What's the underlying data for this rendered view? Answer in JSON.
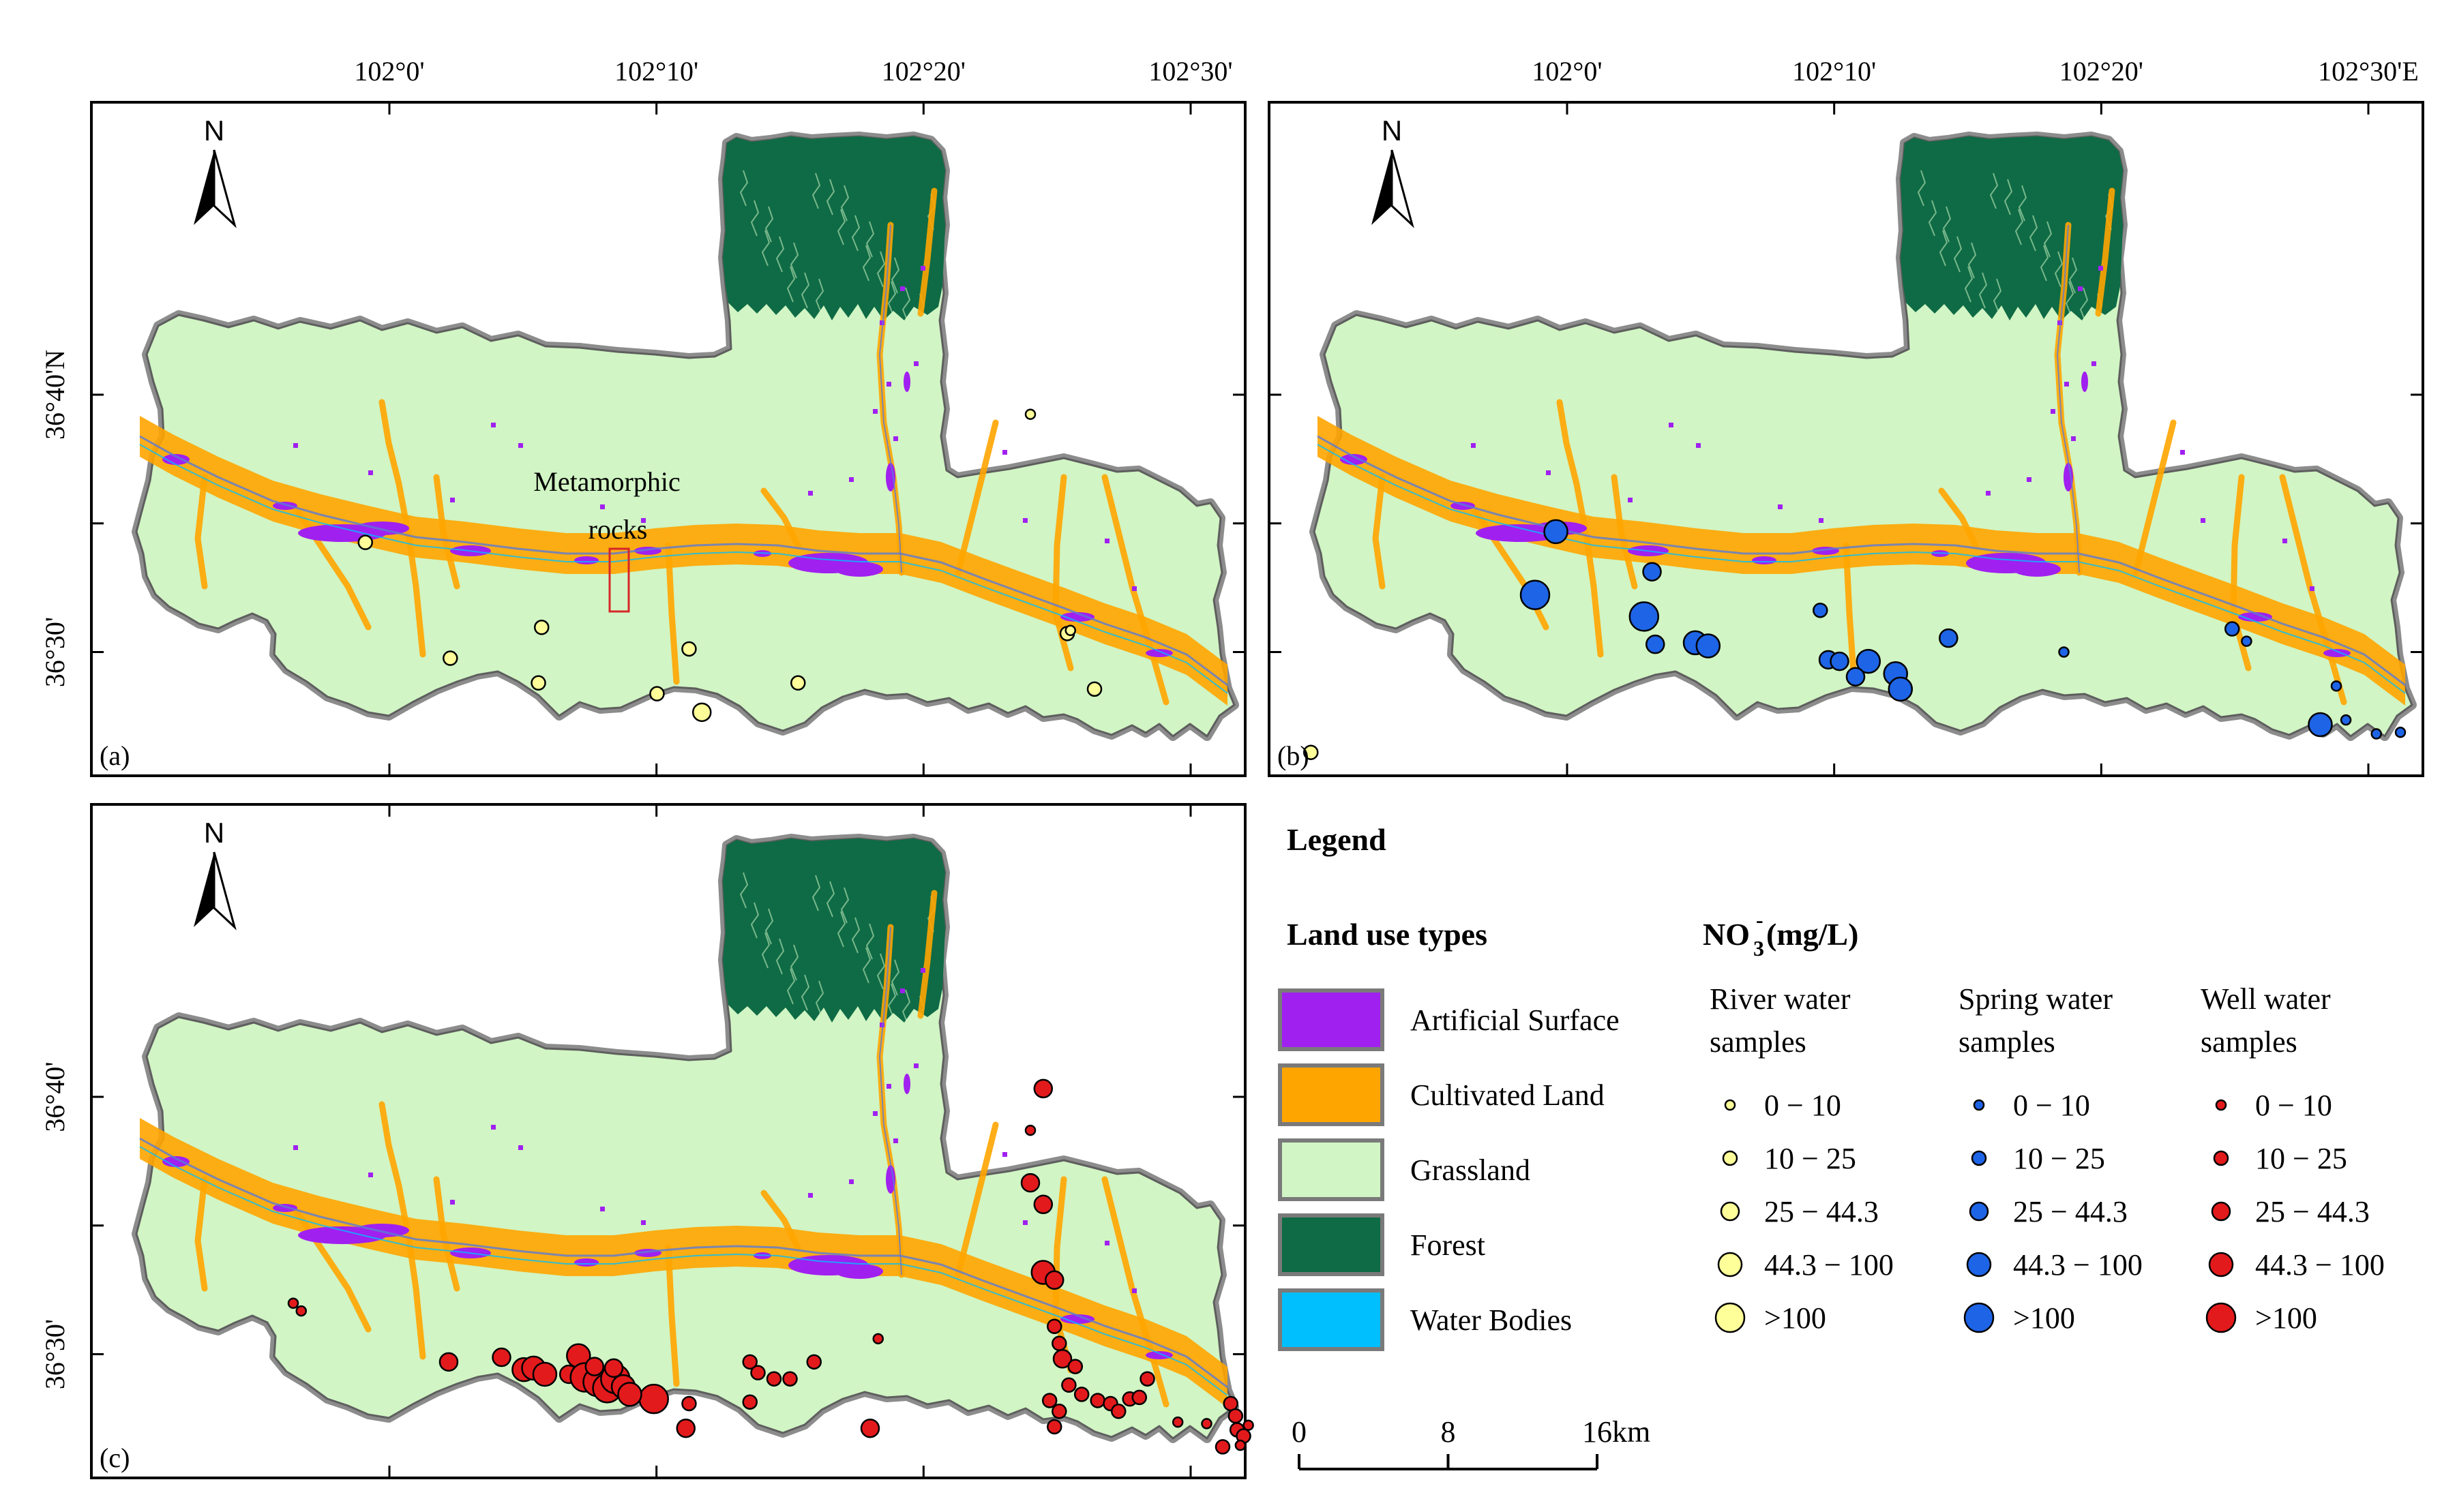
{
  "figure": {
    "panels": [
      {
        "id": "a",
        "panel_label": "(a)",
        "top_ticks": [
          "102°0'",
          "102°10'",
          "102°20'",
          "102°30'"
        ],
        "left_ticks": [
          "36°40'N",
          "36°30'"
        ],
        "annotation": "Metamorphic rocks",
        "sample_type": "river",
        "samples": [
          {
            "lon": 101.985,
            "lat": 36.571,
            "cls": 2
          },
          {
            "lon": 102.095,
            "lat": 36.516,
            "cls": 2
          },
          {
            "lon": 102.038,
            "lat": 36.496,
            "cls": 2
          },
          {
            "lon": 102.093,
            "lat": 36.48,
            "cls": 2
          },
          {
            "lon": 102.187,
            "lat": 36.502,
            "cls": 2
          },
          {
            "lon": 102.167,
            "lat": 36.473,
            "cls": 2
          },
          {
            "lon": 102.195,
            "lat": 36.461,
            "cls": 3
          },
          {
            "lon": 102.255,
            "lat": 36.48,
            "cls": 2
          },
          {
            "lon": 102.4,
            "lat": 36.654,
            "cls": 1
          },
          {
            "lon": 102.423,
            "lat": 36.512,
            "cls": 2
          },
          {
            "lon": 102.425,
            "lat": 36.514,
            "cls": 1
          },
          {
            "lon": 102.44,
            "lat": 36.476,
            "cls": 2
          },
          {
            "lon": 102.575,
            "lat": 36.435,
            "cls": 2
          }
        ]
      },
      {
        "id": "b",
        "panel_label": "(b)",
        "top_ticks": [
          "102°0'",
          "102°10'",
          "102°20'",
          "102°30'E"
        ],
        "left_ticks": [],
        "sample_type": "spring",
        "samples": [
          {
            "lon": 101.993,
            "lat": 36.578,
            "cls": 4
          },
          {
            "lon": 101.98,
            "lat": 36.537,
            "cls": 5
          },
          {
            "lon": 102.053,
            "lat": 36.552,
            "cls": 3
          },
          {
            "lon": 102.048,
            "lat": 36.523,
            "cls": 5
          },
          {
            "lon": 102.055,
            "lat": 36.505,
            "cls": 3
          },
          {
            "lon": 102.08,
            "lat": 36.506,
            "cls": 4
          },
          {
            "lon": 102.088,
            "lat": 36.504,
            "cls": 4
          },
          {
            "lon": 102.158,
            "lat": 36.527,
            "cls": 2
          },
          {
            "lon": 102.163,
            "lat": 36.495,
            "cls": 3
          },
          {
            "lon": 102.17,
            "lat": 36.494,
            "cls": 3
          },
          {
            "lon": 102.188,
            "lat": 36.494,
            "cls": 4
          },
          {
            "lon": 102.18,
            "lat": 36.484,
            "cls": 3
          },
          {
            "lon": 102.205,
            "lat": 36.486,
            "cls": 4
          },
          {
            "lon": 102.208,
            "lat": 36.476,
            "cls": 4
          },
          {
            "lon": 102.238,
            "lat": 36.509,
            "cls": 3
          },
          {
            "lon": 102.31,
            "lat": 36.5,
            "cls": 1
          },
          {
            "lon": 102.415,
            "lat": 36.515,
            "cls": 2
          },
          {
            "lon": 102.424,
            "lat": 36.507,
            "cls": 1
          },
          {
            "lon": 102.48,
            "lat": 36.478,
            "cls": 1
          },
          {
            "lon": 102.47,
            "lat": 36.453,
            "cls": 4
          },
          {
            "lon": 102.486,
            "lat": 36.456,
            "cls": 1
          },
          {
            "lon": 102.505,
            "lat": 36.447,
            "cls": 1
          },
          {
            "lon": 102.52,
            "lat": 36.448,
            "cls": 1
          }
        ]
      },
      {
        "id": "c",
        "panel_label": "(c)",
        "top_ticks": [],
        "left_ticks": [
          "36°40'",
          "36°30'"
        ],
        "sample_type": "well",
        "samples": [
          {
            "lon": 101.94,
            "lat": 36.533,
            "cls": 1
          },
          {
            "lon": 101.945,
            "lat": 36.528,
            "cls": 1
          },
          {
            "lon": 102.037,
            "lat": 36.495,
            "cls": 3
          },
          {
            "lon": 102.07,
            "lat": 36.498,
            "cls": 3
          },
          {
            "lon": 102.084,
            "lat": 36.49,
            "cls": 4
          },
          {
            "lon": 102.09,
            "lat": 36.491,
            "cls": 4
          },
          {
            "lon": 102.097,
            "lat": 36.487,
            "cls": 4
          },
          {
            "lon": 102.112,
            "lat": 36.487,
            "cls": 3
          },
          {
            "lon": 102.118,
            "lat": 36.499,
            "cls": 4
          },
          {
            "lon": 102.122,
            "lat": 36.485,
            "cls": 5
          },
          {
            "lon": 102.13,
            "lat": 36.482,
            "cls": 5
          },
          {
            "lon": 102.136,
            "lat": 36.478,
            "cls": 5
          },
          {
            "lon": 102.141,
            "lat": 36.484,
            "cls": 5
          },
          {
            "lon": 102.146,
            "lat": 36.479,
            "cls": 4
          },
          {
            "lon": 102.128,
            "lat": 36.492,
            "cls": 3
          },
          {
            "lon": 102.14,
            "lat": 36.491,
            "cls": 3
          },
          {
            "lon": 102.165,
            "lat": 36.471,
            "cls": 5
          },
          {
            "lon": 102.15,
            "lat": 36.474,
            "cls": 4
          },
          {
            "lon": 102.225,
            "lat": 36.495,
            "cls": 2
          },
          {
            "lon": 102.23,
            "lat": 36.488,
            "cls": 2
          },
          {
            "lon": 102.24,
            "lat": 36.484,
            "cls": 2
          },
          {
            "lon": 102.225,
            "lat": 36.469,
            "cls": 2
          },
          {
            "lon": 102.25,
            "lat": 36.484,
            "cls": 2
          },
          {
            "lon": 102.265,
            "lat": 36.495,
            "cls": 2
          },
          {
            "lon": 102.187,
            "lat": 36.468,
            "cls": 2
          },
          {
            "lon": 102.185,
            "lat": 36.452,
            "cls": 3
          },
          {
            "lon": 102.305,
            "lat": 36.51,
            "cls": 1
          },
          {
            "lon": 102.3,
            "lat": 36.452,
            "cls": 3
          },
          {
            "lon": 102.408,
            "lat": 36.672,
            "cls": 3
          },
          {
            "lon": 102.4,
            "lat": 36.645,
            "cls": 1
          },
          {
            "lon": 102.4,
            "lat": 36.611,
            "cls": 3
          },
          {
            "lon": 102.408,
            "lat": 36.597,
            "cls": 3
          },
          {
            "lon": 102.408,
            "lat": 36.553,
            "cls": 4
          },
          {
            "lon": 102.415,
            "lat": 36.548,
            "cls": 3
          },
          {
            "lon": 102.415,
            "lat": 36.518,
            "cls": 2
          },
          {
            "lon": 102.418,
            "lat": 36.507,
            "cls": 2
          },
          {
            "lon": 102.42,
            "lat": 36.497,
            "cls": 3
          },
          {
            "lon": 102.424,
            "lat": 36.48,
            "cls": 2
          },
          {
            "lon": 102.428,
            "lat": 36.492,
            "cls": 2
          },
          {
            "lon": 102.412,
            "lat": 36.47,
            "cls": 2
          },
          {
            "lon": 102.418,
            "lat": 36.463,
            "cls": 2
          },
          {
            "lon": 102.415,
            "lat": 36.453,
            "cls": 2
          },
          {
            "lon": 102.432,
            "lat": 36.474,
            "cls": 2
          },
          {
            "lon": 102.442,
            "lat": 36.47,
            "cls": 2
          },
          {
            "lon": 102.45,
            "lat": 36.468,
            "cls": 2
          },
          {
            "lon": 102.455,
            "lat": 36.463,
            "cls": 2
          },
          {
            "lon": 102.462,
            "lat": 36.471,
            "cls": 2
          },
          {
            "lon": 102.468,
            "lat": 36.472,
            "cls": 2
          },
          {
            "lon": 102.473,
            "lat": 36.484,
            "cls": 2
          },
          {
            "lon": 102.492,
            "lat": 36.456,
            "cls": 1
          },
          {
            "lon": 102.51,
            "lat": 36.455,
            "cls": 1
          },
          {
            "lon": 102.52,
            "lat": 36.44,
            "cls": 2
          },
          {
            "lon": 102.525,
            "lat": 36.468,
            "cls": 2
          },
          {
            "lon": 102.528,
            "lat": 36.46,
            "cls": 2
          },
          {
            "lon": 102.529,
            "lat": 36.451,
            "cls": 2
          },
          {
            "lon": 102.533,
            "lat": 36.447,
            "cls": 2
          },
          {
            "lon": 102.536,
            "lat": 36.454,
            "cls": 1
          },
          {
            "lon": 102.531,
            "lat": 36.441,
            "cls": 1
          }
        ]
      }
    ],
    "north_arrow_label": "N"
  },
  "legend": {
    "title": "Legend",
    "land_use_title": "Land use types",
    "land_use": [
      {
        "label": "Artificial Surface",
        "color": "#a020f0"
      },
      {
        "label": "Cultivated Land",
        "color": "#ffa500"
      },
      {
        "label": "Grassland",
        "color": "#d1f5c4"
      },
      {
        "label": "Forest",
        "color": "#0e6b45"
      },
      {
        "label": "Water Bodies",
        "color": "#00bfff"
      }
    ],
    "no3_title_main": "NO",
    "no3_sub": "3",
    "no3_sup": "-",
    "no3_units": " (mg/L)",
    "classes": [
      "0 − 10",
      "10 − 25",
      "25 − 44.3",
      "44.3 − 100",
      ">100"
    ],
    "groups": [
      {
        "key": "river",
        "line1": "River water",
        "line2": "samples",
        "color": "#ffff99"
      },
      {
        "key": "spring",
        "line1": "Spring water",
        "line2": "samples",
        "color": "#1e64e6"
      },
      {
        "key": "well",
        "line1": "Well water",
        "line2": "samples",
        "color": "#e31a1c"
      }
    ]
  },
  "scale_bar": {
    "labels": [
      "0",
      "8",
      "16km"
    ],
    "km": [
      0,
      8,
      16
    ]
  }
}
